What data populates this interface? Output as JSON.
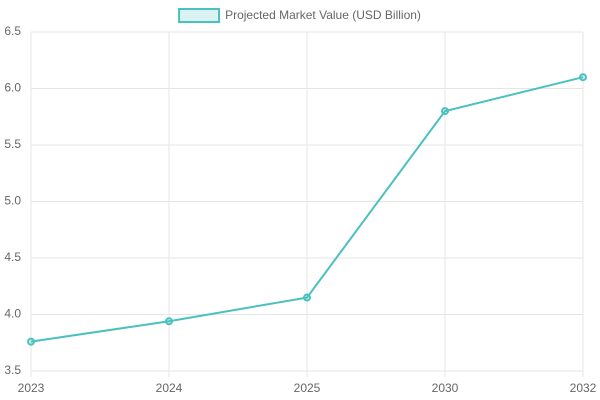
{
  "chart_data": {
    "type": "line",
    "categories": [
      "2023",
      "2024",
      "2025",
      "2030",
      "2032"
    ],
    "series": [
      {
        "name": "Projected Market Value (USD Billion)",
        "color": "#4bc0c0",
        "values": [
          3.76,
          3.94,
          4.15,
          5.8,
          6.1
        ]
      }
    ],
    "ylim": [
      3.5,
      6.5
    ],
    "yticks": [
      3.5,
      {
        "value": 4,
        "label": "4.0"
      },
      4.5,
      {
        "value": 5,
        "label": "5.0"
      },
      5.5,
      {
        "value": 6,
        "label": "6.0"
      },
      6.5
    ],
    "grid": true,
    "legend": "top"
  }
}
